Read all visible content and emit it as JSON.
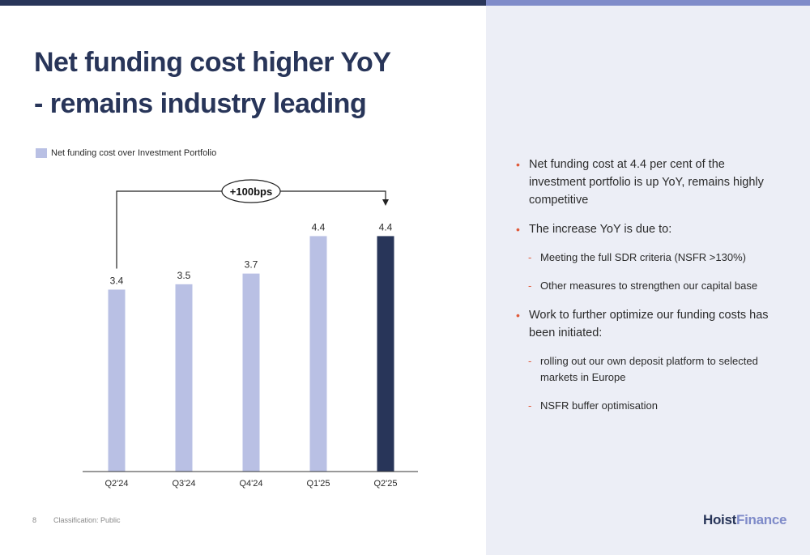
{
  "slide": {
    "title_line1": "Net funding cost higher YoY",
    "title_line2": "- remains industry leading",
    "page_number": "8",
    "classification": "Classification: Public",
    "logo": {
      "part1": "Hoist",
      "part2": "Finance"
    }
  },
  "colors": {
    "bar_light": "#b9c0e4",
    "bar_dark": "#283559",
    "accent": "#e05a3a",
    "panel": "#eceef6"
  },
  "chart_data": {
    "type": "bar",
    "categories": [
      "Q2'24",
      "Q3'24",
      "Q4'24",
      "Q1'25",
      "Q2'25"
    ],
    "series": [
      {
        "name": "Net funding cost over Investment Portfolio",
        "values": [
          3.4,
          3.5,
          3.7,
          4.4,
          4.4
        ]
      }
    ],
    "highlight_index": 4,
    "ylim": [
      0,
      4.8
    ],
    "grid": false,
    "legend": "top-left",
    "annotation": {
      "text": "+100bps",
      "from_category": "Q2'24",
      "to_category": "Q2'25"
    }
  },
  "bullets": [
    {
      "text": "Net funding cost at 4.4 per cent of the investment portfolio is up YoY, remains highly competitive",
      "sub": []
    },
    {
      "text": "The increase YoY is due to:",
      "sub": [
        "Meeting the full SDR criteria (NSFR >130%)",
        "Other measures to strengthen our capital base"
      ]
    },
    {
      "text": "Work to further optimize our funding costs has been initiated:",
      "sub": [
        "rolling out our own deposit platform to selected markets in Europe",
        "NSFR buffer optimisation"
      ]
    }
  ]
}
